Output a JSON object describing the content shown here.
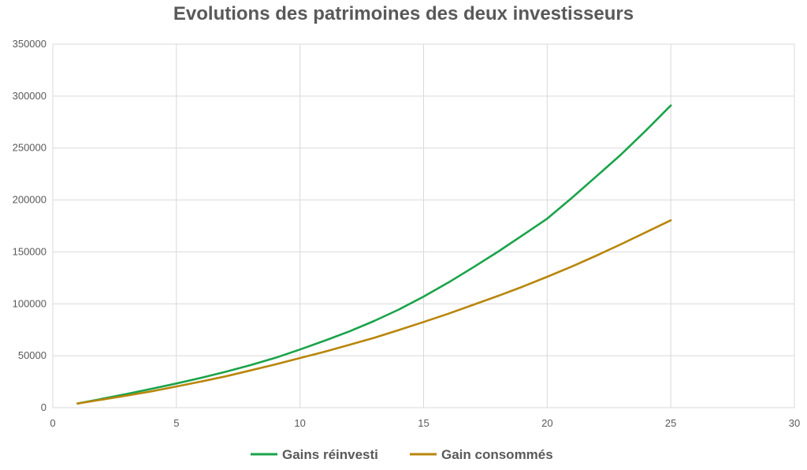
{
  "chart_data": {
    "type": "line",
    "title": "Evolutions des patrimoines des deux investisseurs",
    "xlabel": "",
    "ylabel": "",
    "xlim": [
      0,
      30
    ],
    "ylim": [
      0,
      350000
    ],
    "x_ticks": [
      "0",
      "5",
      "10",
      "15",
      "20",
      "25",
      "30"
    ],
    "y_ticks": [
      "0",
      "50000",
      "100000",
      "150000",
      "200000",
      "250000",
      "300000",
      "350000"
    ],
    "grid": true,
    "legend_position": "bottom",
    "x": [
      1,
      2,
      3,
      4,
      5,
      6,
      7,
      8,
      9,
      10,
      11,
      12,
      13,
      14,
      15,
      16,
      17,
      18,
      19,
      20,
      21,
      22,
      23,
      24,
      25
    ],
    "series": [
      {
        "name": "Gains réinvesti",
        "color": "#1aa34a",
        "values": [
          4000,
          8600,
          13300,
          18200,
          23300,
          28800,
          34600,
          41000,
          48000,
          56000,
          64500,
          73500,
          83500,
          94500,
          107000,
          120500,
          135000,
          150000,
          166000,
          182000,
          202000,
          223000,
          244000,
          267000,
          291000
        ]
      },
      {
        "name": "Gain consommés",
        "color": "#b8860b",
        "values": [
          4000,
          7800,
          11700,
          15800,
          20400,
          25200,
          30200,
          35900,
          41700,
          47800,
          53900,
          60500,
          67300,
          74800,
          82500,
          90500,
          99000,
          107500,
          116500,
          126000,
          136000,
          146500,
          157500,
          169000,
          180500
        ]
      }
    ]
  }
}
